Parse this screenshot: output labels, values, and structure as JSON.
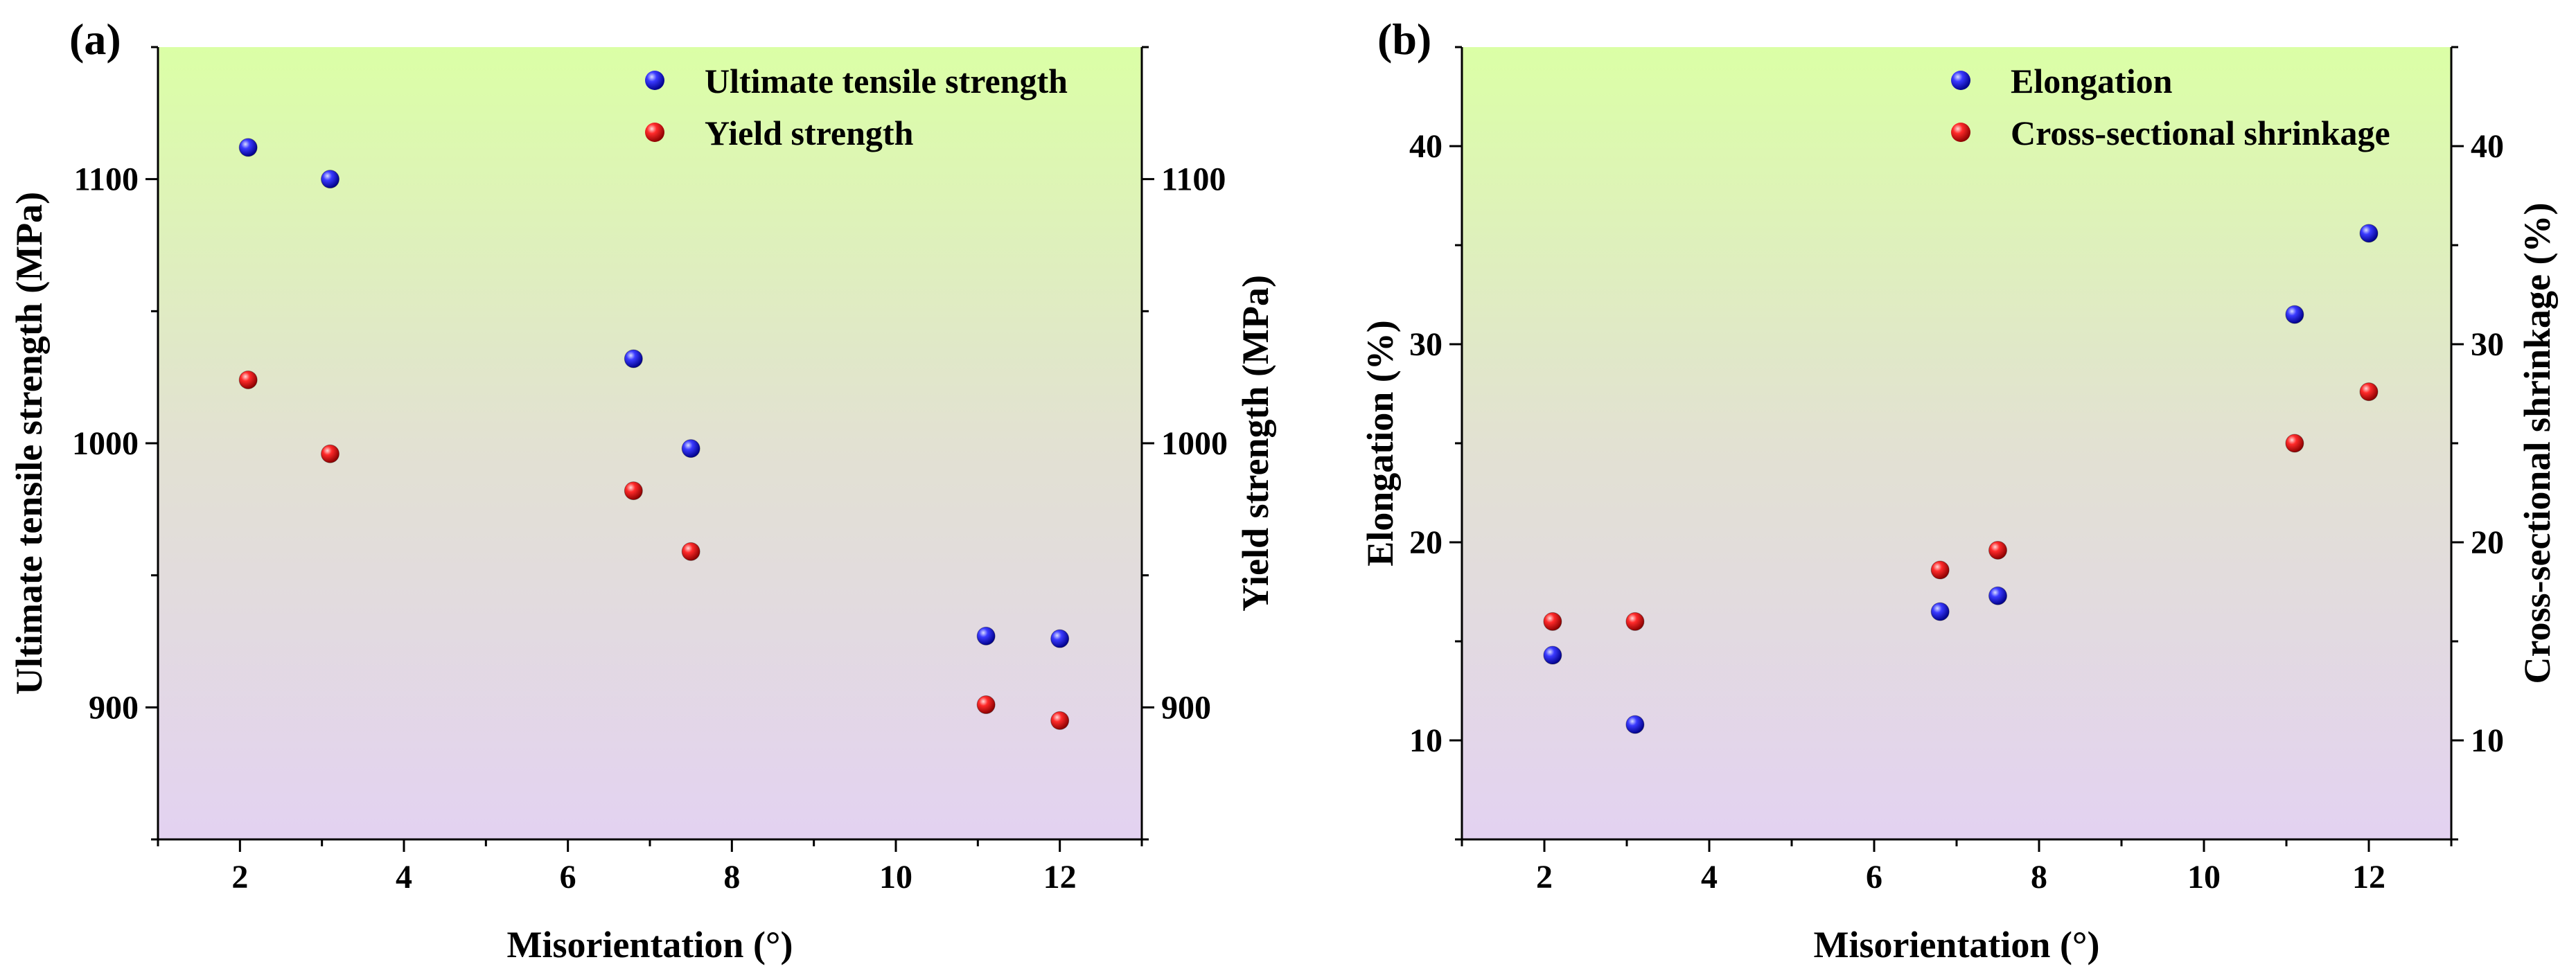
{
  "chart_data": [
    {
      "panel_label": "(a)",
      "type": "scatter",
      "xlabel": "Misorientation (°)",
      "ylabel_left": "Ultimate tensile strength (MPa)",
      "ylabel_right": "Yield strength (MPa)",
      "xlim": [
        1,
        13
      ],
      "ylim_left": [
        850,
        1150
      ],
      "ylim_right": [
        850,
        1150
      ],
      "x_ticks": [
        2,
        4,
        6,
        8,
        10,
        12
      ],
      "y_ticks_left": [
        900,
        1000,
        1100
      ],
      "y_ticks_right": [
        900,
        1000,
        1100
      ],
      "legend_position": "top-right",
      "series": [
        {
          "name": "Ultimate tensile strength",
          "color": "#1010e0",
          "axis": "left",
          "x": [
            2.1,
            3.1,
            6.8,
            7.5,
            11.1,
            12.0
          ],
          "y": [
            1112,
            1100,
            1032,
            998,
            927,
            926
          ]
        },
        {
          "name": "Yield strength",
          "color": "#e01010",
          "axis": "right",
          "x": [
            2.1,
            3.1,
            6.8,
            7.5,
            11.1,
            12.0
          ],
          "y": [
            1024,
            996,
            982,
            959,
            901,
            895
          ]
        }
      ]
    },
    {
      "panel_label": "(b)",
      "type": "scatter",
      "xlabel": "Misorientation (°)",
      "ylabel_left": "Elongation (%)",
      "ylabel_right": "Cross-sectional shrinkage (%)",
      "xlim": [
        1,
        13
      ],
      "ylim_left": [
        5,
        45
      ],
      "ylim_right": [
        5,
        45
      ],
      "x_ticks": [
        2,
        4,
        6,
        8,
        10,
        12
      ],
      "y_ticks_left": [
        10,
        20,
        30,
        40
      ],
      "y_ticks_right": [
        10,
        20,
        30,
        40
      ],
      "legend_position": "top-right",
      "series": [
        {
          "name": "Elongation",
          "color": "#1010e0",
          "axis": "left",
          "x": [
            2.1,
            3.1,
            6.8,
            7.5,
            11.1,
            12.0
          ],
          "y": [
            14.3,
            10.8,
            16.5,
            17.3,
            31.5,
            35.6
          ]
        },
        {
          "name": "Cross-sectional shrinkage",
          "color": "#e01010",
          "axis": "right",
          "x": [
            2.1,
            3.1,
            6.8,
            7.5,
            11.1,
            12.0
          ],
          "y": [
            16.0,
            16.0,
            18.6,
            19.6,
            25.0,
            27.6
          ]
        }
      ]
    }
  ]
}
